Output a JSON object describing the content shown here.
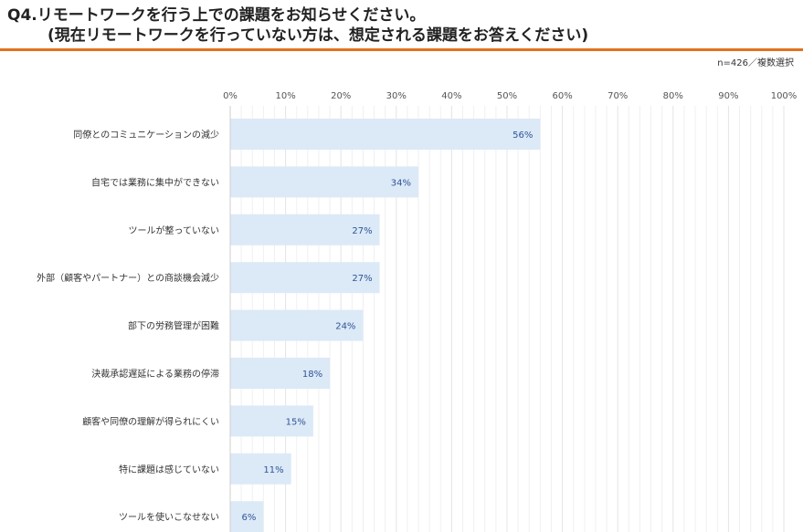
{
  "title": {
    "line1": "Q4.リモートワークを行う上での課題をお知らせください。",
    "line2": "(現在リモートワークを行っていない方は、想定される課題をお答えください)"
  },
  "note": "n=426／複数選択",
  "colors": {
    "accent": "#e2711d",
    "bar": "#dce9f7",
    "label": "#2f5597",
    "grid": "#e4e4e4"
  },
  "chart_data": {
    "type": "bar",
    "orientation": "horizontal",
    "categories": [
      "同僚とのコミュニケーションの減少",
      "自宅では業務に集中ができない",
      "ツールが整っていない",
      "外部（顧客やパートナー）との商談機会減少",
      "部下の労務管理が困難",
      "決裁承認遅延による業務の停滞",
      "顧客や同僚の理解が得られにくい",
      "特に課題は感じていない",
      "ツールを使いこなせない"
    ],
    "values": [
      56,
      34,
      27,
      27,
      24,
      18,
      15,
      11,
      6
    ],
    "data_labels": [
      "56%",
      "34%",
      "27%",
      "27%",
      "24%",
      "18%",
      "15%",
      "11%",
      "6%"
    ],
    "xlim": [
      0,
      100
    ],
    "x_ticks": [
      "0%",
      "10%",
      "20%",
      "30%",
      "40%",
      "50%",
      "60%",
      "70%",
      "80%",
      "90%",
      "100%"
    ],
    "grid": true
  }
}
